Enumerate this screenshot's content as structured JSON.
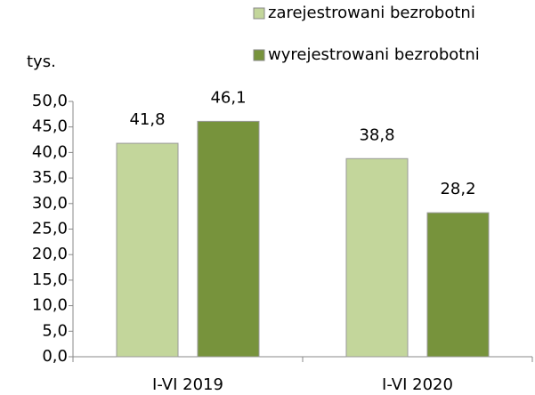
{
  "chart_data": {
    "type": "bar",
    "y_label": "tys.",
    "categories": [
      "I-VI 2019",
      "I-VI 2020"
    ],
    "series": [
      {
        "name": "zarejestrowani bezrobotni",
        "color": "#c3d69b",
        "values": [
          41.8,
          38.8
        ],
        "value_labels": [
          "41,8",
          "38,8"
        ]
      },
      {
        "name": "wyrejestrowani bezrobotni",
        "color": "#77933c",
        "values": [
          46.1,
          28.2
        ],
        "value_labels": [
          "46,1",
          "28,2"
        ]
      }
    ],
    "ylim": [
      0,
      50
    ],
    "yticks": [
      {
        "value": 0,
        "label": "0,0"
      },
      {
        "value": 5,
        "label": "5,0"
      },
      {
        "value": 10,
        "label": "10,0"
      },
      {
        "value": 15,
        "label": "15,0"
      },
      {
        "value": 20,
        "label": "20,0"
      },
      {
        "value": 25,
        "label": "25,0"
      },
      {
        "value": 30,
        "label": "30,0"
      },
      {
        "value": 35,
        "label": "35,0"
      },
      {
        "value": 40,
        "label": "40,0"
      },
      {
        "value": 45,
        "label": "45,0"
      },
      {
        "value": 50,
        "label": "50,0"
      }
    ],
    "grid": false,
    "legend": "top"
  }
}
